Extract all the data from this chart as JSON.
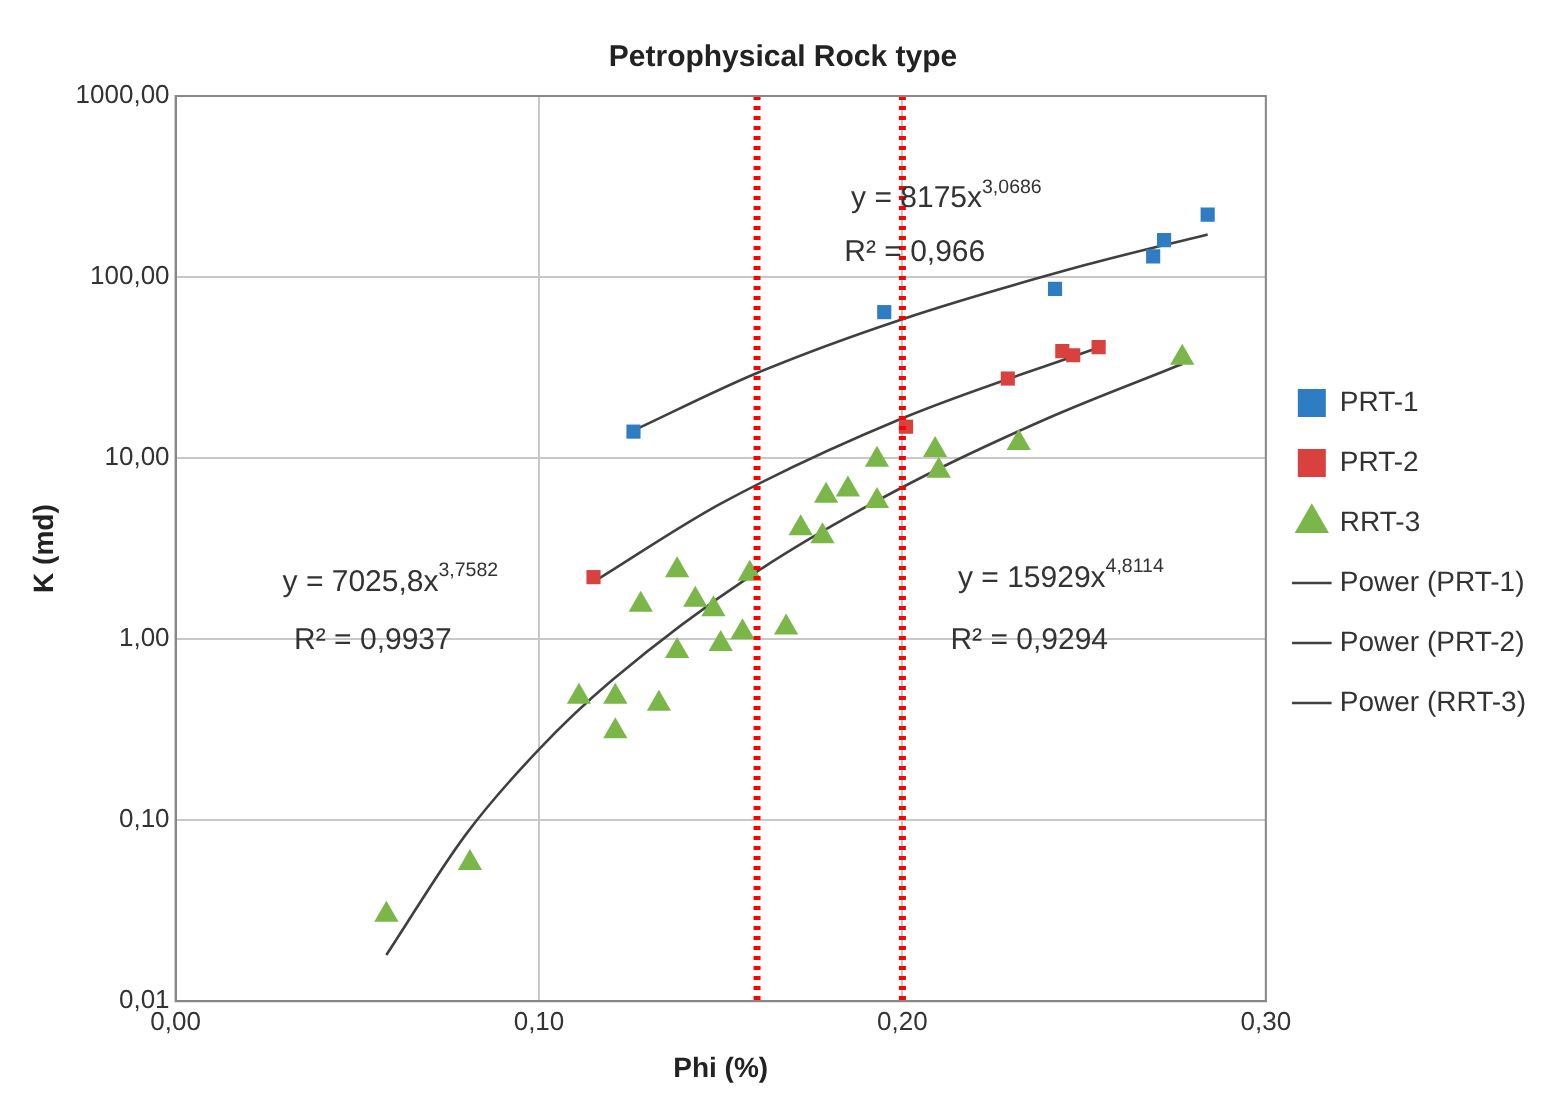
{
  "chart_data": {
    "type": "scatter",
    "title": "Petrophysical Rock type",
    "xlabel": "Phi (%)",
    "ylabel": "K (md)",
    "log": "y",
    "grid": true,
    "legend": "right",
    "xlim": [
      0,
      0.3
    ],
    "xticks": [
      {
        "value": 0,
        "label": "0,00"
      },
      {
        "value": 0.1,
        "label": "0,10"
      },
      {
        "value": 0.2,
        "label": "0,20"
      },
      {
        "value": 0.3,
        "label": "0,30"
      }
    ],
    "ylim": [
      0.01,
      1000
    ],
    "yticks": [
      {
        "value": 0.01,
        "label": "0,01"
      },
      {
        "value": 0.1,
        "label": "0,10"
      },
      {
        "value": 1,
        "label": "1,00"
      },
      {
        "value": 10,
        "label": "10,00"
      },
      {
        "value": 100,
        "label": "100,00"
      },
      {
        "value": 1000,
        "label": "1000,00"
      }
    ],
    "series": [
      {
        "name": "PRT-1",
        "type": "scatter",
        "marker": "square",
        "color": "#2e7dc2",
        "x": [
          0.126,
          0.195,
          0.242,
          0.269,
          0.272,
          0.284
        ],
        "values": [
          14,
          64,
          86,
          130,
          160,
          221
        ]
      },
      {
        "name": "PRT-2",
        "type": "scatter",
        "marker": "square",
        "color": "#d9413e",
        "x": [
          0.115,
          0.201,
          0.229,
          0.244,
          0.247,
          0.254
        ],
        "values": [
          2.2,
          14.9,
          27.5,
          39,
          37,
          41
        ]
      },
      {
        "name": "RRT-3",
        "type": "scatter",
        "marker": "triangle",
        "color": "#7ab648",
        "x": [
          0.277,
          0.232,
          0.209,
          0.21,
          0.193,
          0.179,
          0.185,
          0.193,
          0.172,
          0.178,
          0.158,
          0.138,
          0.128,
          0.143,
          0.148,
          0.156,
          0.168,
          0.15,
          0.138,
          0.111,
          0.121,
          0.133,
          0.121,
          0.081,
          0.058
        ],
        "values": [
          35.8,
          12.1,
          11.1,
          8.5,
          9.8,
          6.2,
          6.7,
          5.8,
          4.1,
          3.7,
          2.3,
          2.4,
          1.55,
          1.65,
          1.46,
          1.09,
          1.16,
          0.94,
          0.86,
          0.48,
          0.48,
          0.44,
          0.31,
          0.058,
          0.03
        ]
      },
      {
        "name": "Power (PRT-1)",
        "type": "line",
        "marker": "none",
        "color": "#404040",
        "x": [
          0.126,
          0.16,
          0.2,
          0.25,
          0.284
        ],
        "values": [
          14.2,
          29.5,
          58.5,
          116,
          172
        ]
      },
      {
        "name": "Power (PRT-2)",
        "type": "line",
        "marker": "none",
        "color": "#404040",
        "x": [
          0.115,
          0.15,
          0.2,
          0.254
        ],
        "values": [
          2.07,
          5.6,
          16.6,
          40.8
        ]
      },
      {
        "name": "Power (RRT-3)",
        "type": "line",
        "marker": "none",
        "color": "#404040",
        "x": [
          0.058,
          0.08,
          0.1,
          0.12,
          0.16,
          0.2,
          0.24,
          0.277
        ],
        "values": [
          0.018,
          0.084,
          0.246,
          0.59,
          2.36,
          6.9,
          16.6,
          33.1
        ]
      }
    ],
    "ref_lines": [
      {
        "axis": "x",
        "value": 0.16,
        "color": "#ff0000",
        "line_style": "dotted"
      },
      {
        "axis": "x",
        "value": 0.2,
        "color": "#ff0000",
        "line_style": "dotted"
      }
    ],
    "annotations": [
      "y = 8175x$^{3,0686}$",
      "R² = 0,966",
      "y = 7025,8x$^{3,7582}$",
      "R² = 0,9937",
      "y = 15929x$^{4,8114}$",
      "R² = 0,9294"
    ]
  }
}
